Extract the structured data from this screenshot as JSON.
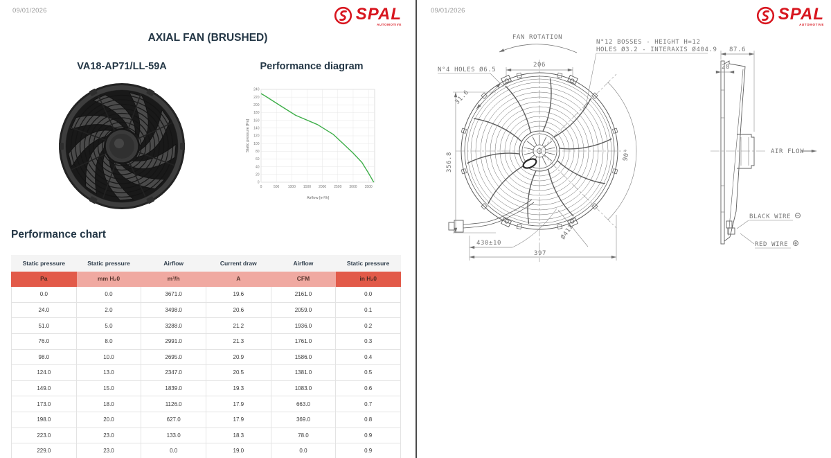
{
  "page": {
    "date": "09/01/2026"
  },
  "brand": {
    "name": "SPAL",
    "tagline": "AUTOMOTIVE",
    "color": "#d8161f"
  },
  "left": {
    "title": "AXIAL FAN (BRUSHED)",
    "model": "VA18-AP71/LL-59A",
    "diagram_title": "Performance diagram",
    "table_title": "Performance chart",
    "table": {
      "headers": [
        "Static pressure",
        "Static pressure",
        "Airflow",
        "Current draw",
        "Airflow",
        "Static pressure"
      ],
      "units": [
        "Pa",
        "mm H₂0",
        "m³/h",
        "A",
        "CFM",
        "in H₂0"
      ],
      "unit_styles": [
        "dark",
        "light",
        "light",
        "light",
        "light",
        "dark"
      ],
      "rows": [
        [
          "0.0",
          "0.0",
          "3671.0",
          "19.6",
          "2161.0",
          "0.0"
        ],
        [
          "24.0",
          "2.0",
          "3498.0",
          "20.6",
          "2059.0",
          "0.1"
        ],
        [
          "51.0",
          "5.0",
          "3288.0",
          "21.2",
          "1936.0",
          "0.2"
        ],
        [
          "76.0",
          "8.0",
          "2991.0",
          "21.3",
          "1761.0",
          "0.3"
        ],
        [
          "98.0",
          "10.0",
          "2695.0",
          "20.9",
          "1586.0",
          "0.4"
        ],
        [
          "124.0",
          "13.0",
          "2347.0",
          "20.5",
          "1381.0",
          "0.5"
        ],
        [
          "149.0",
          "15.0",
          "1839.0",
          "19.3",
          "1083.0",
          "0.6"
        ],
        [
          "173.0",
          "18.0",
          "1126.0",
          "17.9",
          "663.0",
          "0.7"
        ],
        [
          "198.0",
          "20.0",
          "627.0",
          "17.9",
          "369.0",
          "0.8"
        ],
        [
          "223.0",
          "23.0",
          "133.0",
          "18.3",
          "78.0",
          "0.9"
        ],
        [
          "229.0",
          "23.0",
          "0.0",
          "19.0",
          "0.0",
          "0.9"
        ]
      ]
    }
  },
  "chart_data": {
    "type": "line",
    "title": "Performance diagram",
    "xlabel": "Airflow [m³/h]",
    "ylabel": "Static pressure [Pa]",
    "x": [
      0,
      133,
      627,
      1126,
      1839,
      2347,
      2695,
      2991,
      3288,
      3498,
      3671
    ],
    "y": [
      229,
      223,
      198,
      173,
      149,
      124,
      98,
      76,
      51,
      24,
      0
    ],
    "xlim": [
      0,
      3700
    ],
    "ylim": [
      0,
      240
    ],
    "x_ticks": [
      0,
      500,
      1000,
      1500,
      2000,
      2500,
      3000,
      3500
    ],
    "y_ticks": [
      0,
      20,
      40,
      60,
      80,
      100,
      120,
      140,
      160,
      180,
      200,
      220,
      240
    ],
    "grid": true,
    "legend": "none",
    "line_color": "#3eae49"
  },
  "drawing": {
    "fan_rotation": "FAN ROTATION",
    "bosses_line1": "N°12 BOSSES - HEIGHT H=12",
    "bosses_line2": "HOLES Ø3.2 - INTERAXIS Ø404.9",
    "holes4": "N°4 HOLES Ø6.5",
    "dim_top_width": "206",
    "dim_bolt_gap": "31.6",
    "dim_height": "356.8",
    "angle": "90°",
    "diameter": "Ø412",
    "dim_bottom_width": "397",
    "wire_length": "430±10",
    "dim_depth": "87.6",
    "dim_flange": "28",
    "air_flow": "AIR FLOW",
    "black_wire": "BLACK WIRE",
    "black_wire_polarity": "minus",
    "red_wire": "RED WIRE",
    "red_wire_polarity": "plus"
  },
  "colors": {
    "accent_red": "#d8161f",
    "table_dark_cell": "#e25a49",
    "table_light_cell": "#f0a9a1",
    "chart_line": "#3eae49",
    "drawing_line": "#5c5c5c"
  }
}
